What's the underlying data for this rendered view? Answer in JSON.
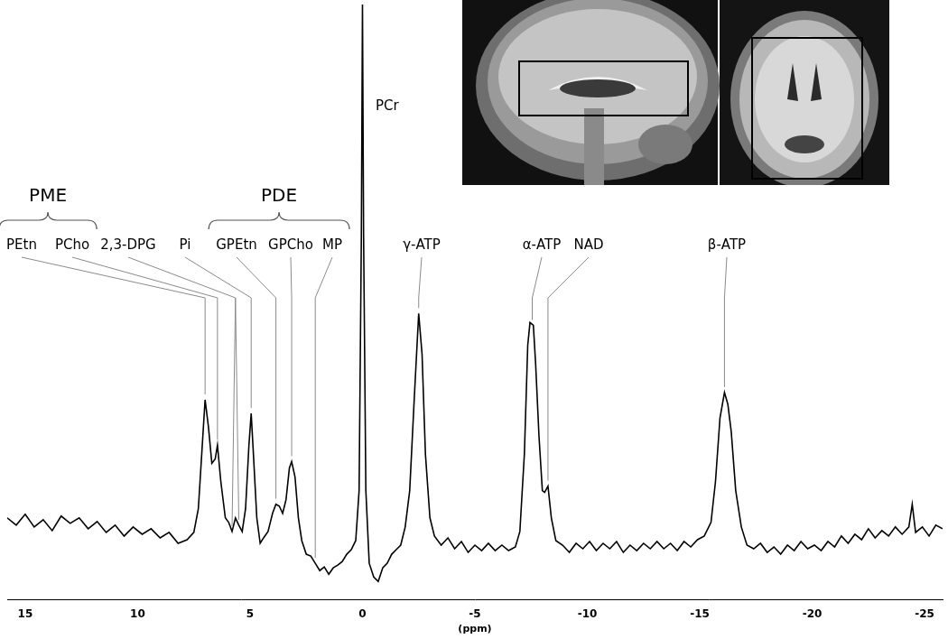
{
  "chart_data": {
    "type": "line",
    "x_label": "(ppm)",
    "xlim": [
      15.8,
      -25.8
    ],
    "xticks": [
      15,
      10,
      5,
      0,
      -5,
      -10,
      -15,
      -20,
      -25
    ],
    "ylim": [
      0,
      66
    ],
    "tick_labels": "x",
    "grid": false,
    "color": "#000000",
    "x": [
      15.8,
      15.4,
      15.0,
      14.6,
      14.2,
      13.8,
      13.4,
      13.0,
      12.6,
      12.2,
      11.8,
      11.4,
      11.0,
      10.6,
      10.2,
      9.8,
      9.4,
      9.0,
      8.6,
      8.2,
      7.8,
      7.5,
      7.3,
      7.15,
      7.0,
      6.85,
      6.7,
      6.55,
      6.45,
      6.3,
      6.1,
      5.95,
      5.8,
      5.65,
      5.5,
      5.35,
      5.2,
      5.05,
      4.95,
      4.85,
      4.7,
      4.55,
      4.4,
      4.2,
      4.0,
      3.85,
      3.7,
      3.55,
      3.4,
      3.25,
      3.15,
      3.0,
      2.85,
      2.7,
      2.5,
      2.3,
      2.1,
      1.9,
      1.7,
      1.5,
      1.3,
      1.1,
      0.9,
      0.7,
      0.5,
      0.3,
      0.15,
      0.05,
      0,
      -0.05,
      -0.15,
      -0.3,
      -0.5,
      -0.7,
      -0.9,
      -1.1,
      -1.3,
      -1.5,
      -1.7,
      -1.9,
      -2.1,
      -2.3,
      -2.5,
      -2.65,
      -2.8,
      -3.0,
      -3.2,
      -3.5,
      -3.8,
      -4.1,
      -4.4,
      -4.7,
      -5.0,
      -5.3,
      -5.6,
      -5.9,
      -6.2,
      -6.5,
      -6.8,
      -7.0,
      -7.2,
      -7.35,
      -7.45,
      -7.6,
      -7.7,
      -7.85,
      -8.0,
      -8.1,
      -8.25,
      -8.4,
      -8.6,
      -8.9,
      -9.2,
      -9.5,
      -9.8,
      -10.1,
      -10.4,
      -10.7,
      -11.0,
      -11.3,
      -11.6,
      -11.9,
      -12.2,
      -12.5,
      -12.8,
      -13.1,
      -13.4,
      -13.7,
      -14.0,
      -14.3,
      -14.6,
      -14.9,
      -15.2,
      -15.5,
      -15.7,
      -15.9,
      -16.1,
      -16.25,
      -16.4,
      -16.6,
      -16.85,
      -17.1,
      -17.4,
      -17.7,
      -18.0,
      -18.3,
      -18.6,
      -18.9,
      -19.2,
      -19.5,
      -19.8,
      -20.1,
      -20.4,
      -20.7,
      -21.0,
      -21.3,
      -21.6,
      -21.9,
      -22.2,
      -22.5,
      -22.8,
      -23.1,
      -23.4,
      -23.7,
      -24.0,
      -24.3,
      -24.45,
      -24.6,
      -24.9,
      -25.2,
      -25.5,
      -25.8
    ],
    "values": [
      9.0,
      8.2,
      9.4,
      8.0,
      8.8,
      7.6,
      9.2,
      8.4,
      9.0,
      7.8,
      8.6,
      7.4,
      8.2,
      7.0,
      8.0,
      7.2,
      7.8,
      6.8,
      7.4,
      6.2,
      6.6,
      7.4,
      10,
      16,
      22,
      19,
      15,
      15.5,
      17,
      13,
      9,
      8.5,
      7.5,
      9,
      8.2,
      7.5,
      10,
      17,
      20.5,
      16,
      9,
      6.2,
      6.8,
      7.5,
      9.5,
      10.5,
      10.3,
      9.5,
      11,
      14.5,
      15.2,
      13.5,
      9,
      6.5,
      5,
      4.8,
      4.0,
      3.2,
      3.6,
      2.8,
      3.5,
      3.8,
      4.2,
      5,
      5.5,
      6.5,
      12,
      40,
      65.5,
      40,
      12,
      4,
      2.5,
      2,
      3.5,
      4,
      5,
      5.5,
      6,
      8,
      12,
      22,
      31.5,
      27,
      16,
      9,
      7,
      6,
      6.8,
      5.6,
      6.4,
      5.2,
      6,
      5.4,
      6.2,
      5.4,
      6,
      5.4,
      5.8,
      7.5,
      16,
      28,
      30.5,
      30.2,
      26,
      18,
      12,
      11.8,
      12.5,
      9,
      6.5,
      6,
      5.2,
      6.2,
      5.6,
      6.4,
      5.4,
      6.2,
      5.6,
      6.4,
      5.2,
      6,
      5.4,
      6.2,
      5.6,
      6.4,
      5.6,
      6.2,
      5.4,
      6.4,
      5.8,
      6.6,
      7,
      8.5,
      13,
      20,
      22.8,
      21.5,
      18.5,
      12,
      8,
      6,
      5.6,
      6.2,
      5.2,
      5.8,
      5,
      6,
      5.4,
      6.4,
      5.6,
      6,
      5.4,
      6.4,
      5.8,
      7,
      6.2,
      7.2,
      6.6,
      7.8,
      6.8,
      7.6,
      7,
      8,
      7.2,
      8,
      10.5,
      7.4,
      8,
      7,
      8.2,
      7.8
    ],
    "annotations": [
      {
        "text": "PEtn",
        "x": 7.0
      },
      {
        "text": "PCho",
        "x": 6.45
      },
      {
        "text": "2,3-DPG",
        "x": [
          5.8,
          5.5
        ]
      },
      {
        "text": "Pi",
        "x": 4.95
      },
      {
        "text": "GPEtn",
        "x": 3.85
      },
      {
        "text": "GPCho",
        "x": 3.15
      },
      {
        "text": "MP",
        "x": 2.1
      },
      {
        "text": "PCr",
        "x": 0
      },
      {
        "text": "γ-ATP",
        "x": -2.5
      },
      {
        "text": "α-ATP",
        "x": -7.55
      },
      {
        "text": "NAD",
        "x": -8.25
      },
      {
        "text": "β-ATP",
        "x": -16.1
      }
    ],
    "groups": [
      {
        "text": "PME",
        "members": [
          "PEtn",
          "PCho"
        ]
      },
      {
        "text": "PDE",
        "members": [
          "GPEtn",
          "GPCho",
          "MP"
        ]
      }
    ]
  }
}
